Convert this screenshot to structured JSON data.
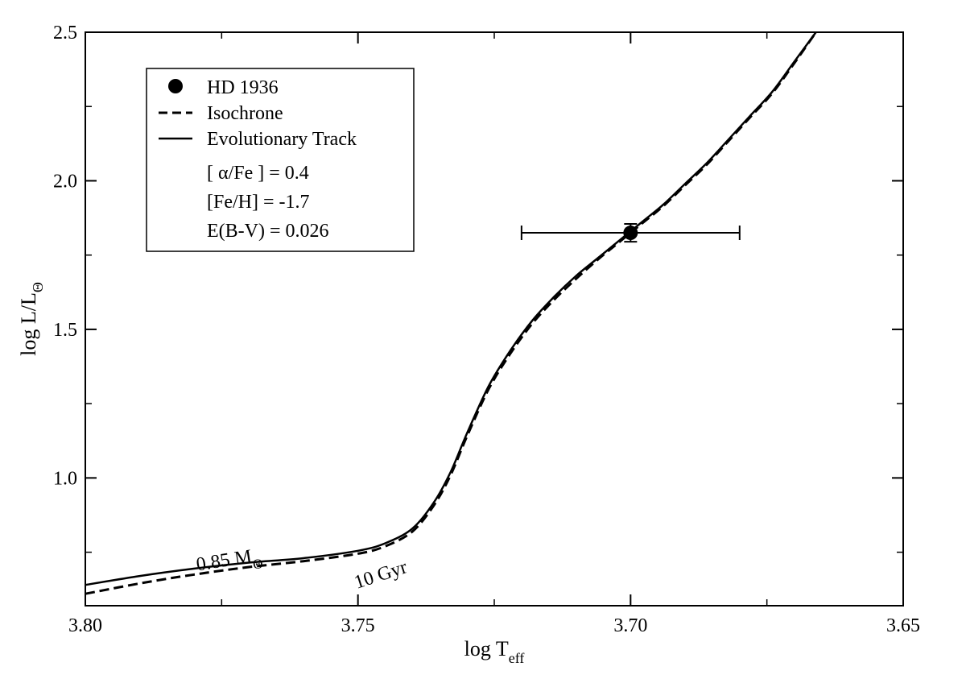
{
  "chart_data": {
    "type": "line",
    "xlabel": {
      "main": "log T",
      "sub": "eff"
    },
    "ylabel": {
      "main": "log L/L",
      "sub": "Θ"
    },
    "xlim": [
      3.8,
      3.65
    ],
    "ylim": [
      0.57,
      2.5
    ],
    "x_reversed": true,
    "x_ticks": [
      3.8,
      3.75,
      3.7,
      3.65
    ],
    "x_tick_labels": [
      "3.80",
      "3.75",
      "3.70",
      "3.65"
    ],
    "x_minor_ticks": [
      3.775,
      3.725,
      3.675
    ],
    "y_ticks": [
      1.0,
      1.5,
      2.0,
      2.5
    ],
    "y_tick_labels": [
      "1.0",
      "1.5",
      "2.0",
      "2.5"
    ],
    "y_minor_ticks": [
      0.75,
      1.25,
      1.75,
      2.25
    ],
    "grid": false,
    "legend_position": "top-left",
    "legend": {
      "entries": [
        {
          "label": "HD 1936",
          "style": "marker"
        },
        {
          "label": "Isochrone",
          "style": "dashed"
        },
        {
          "label": "Evolutionary Track",
          "style": "solid"
        }
      ],
      "params": [
        "[ α/Fe ] = 0.4",
        "[Fe/H] = -1.7",
        "E(B-V) = 0.026"
      ]
    },
    "series": [
      {
        "name": "Evolutionary Track",
        "style": "solid",
        "x": [
          3.8,
          3.79,
          3.78,
          3.77,
          3.76,
          3.75,
          3.745,
          3.74,
          3.736,
          3.733,
          3.73,
          3.726,
          3.722,
          3.718,
          3.714,
          3.71,
          3.706,
          3.702,
          3.698,
          3.694,
          3.69,
          3.686,
          3.682,
          3.678,
          3.674,
          3.67,
          3.666
        ],
        "y": [
          0.64,
          0.67,
          0.695,
          0.715,
          0.73,
          0.755,
          0.78,
          0.83,
          0.92,
          1.02,
          1.15,
          1.31,
          1.43,
          1.53,
          1.61,
          1.68,
          1.74,
          1.8,
          1.86,
          1.92,
          1.99,
          2.06,
          2.14,
          2.22,
          2.3,
          2.4,
          2.5
        ]
      },
      {
        "name": "Isochrone",
        "style": "dashed",
        "x": [
          3.8,
          3.79,
          3.78,
          3.77,
          3.76,
          3.75,
          3.745,
          3.74,
          3.736,
          3.733,
          3.73,
          3.726,
          3.722,
          3.718,
          3.714,
          3.71,
          3.706,
          3.702,
          3.698,
          3.694,
          3.69,
          3.686,
          3.682,
          3.678,
          3.674,
          3.67,
          3.666
        ],
        "y": [
          0.61,
          0.645,
          0.675,
          0.7,
          0.72,
          0.745,
          0.77,
          0.82,
          0.91,
          1.01,
          1.14,
          1.3,
          1.42,
          1.52,
          1.6,
          1.67,
          1.735,
          1.795,
          1.855,
          1.915,
          1.985,
          2.055,
          2.135,
          2.215,
          2.295,
          2.395,
          2.5
        ]
      }
    ],
    "points": [
      {
        "name": "HD 1936",
        "x": 3.7,
        "y": 1.825,
        "xerr": 0.02,
        "yerr": 0.03
      }
    ],
    "annotations": [
      {
        "text": "0.85 M",
        "sub": "Θ",
        "x": 3.7735,
        "y": 0.705,
        "angle": -9
      },
      {
        "text": "10 Gyr",
        "x": 3.7455,
        "y": 0.655,
        "angle": -18
      }
    ]
  }
}
